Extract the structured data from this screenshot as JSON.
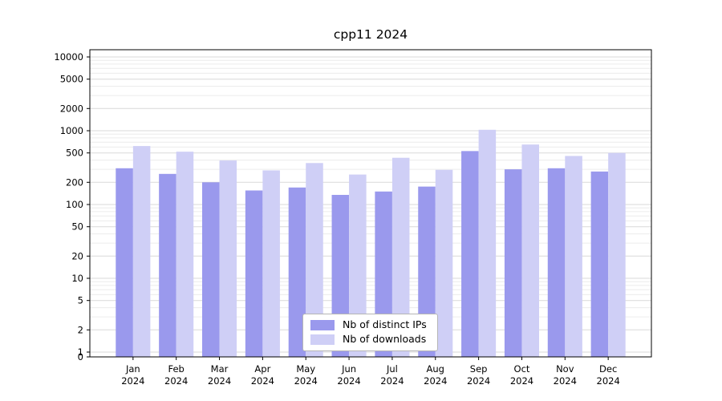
{
  "title": "cpp11 2024",
  "chart_data": {
    "type": "bar",
    "title": "cpp11 2024",
    "yscale": "log",
    "grid": "on",
    "legend_position": "lower center",
    "xlabel": "",
    "ylabel": "",
    "year_label": "2024",
    "categories": [
      "Jan",
      "Feb",
      "Mar",
      "Apr",
      "May",
      "Jun",
      "Jul",
      "Aug",
      "Sep",
      "Oct",
      "Nov",
      "Dec"
    ],
    "series": [
      {
        "name": "Nb of distinct IPs",
        "color": "#9a99ed",
        "values": [
          310,
          260,
          200,
          155,
          170,
          135,
          150,
          175,
          530,
          300,
          310,
          280
        ]
      },
      {
        "name": "Nb of downloads",
        "color": "#cfcff6",
        "values": [
          620,
          520,
          395,
          290,
          365,
          255,
          430,
          295,
          1030,
          650,
          455,
          500
        ]
      }
    ],
    "yticks": [
      0,
      1,
      2,
      5,
      10,
      20,
      50,
      100,
      200,
      500,
      1000,
      2000,
      5000,
      10000
    ],
    "ylim": [
      0,
      13000
    ]
  },
  "colors": {
    "ips_bar": "#9a99ed",
    "downloads_bar": "#cfcff6",
    "grid_major": "#d9d9d9",
    "grid_minor": "#ececec",
    "axis": "#000000",
    "background": "#ffffff"
  }
}
